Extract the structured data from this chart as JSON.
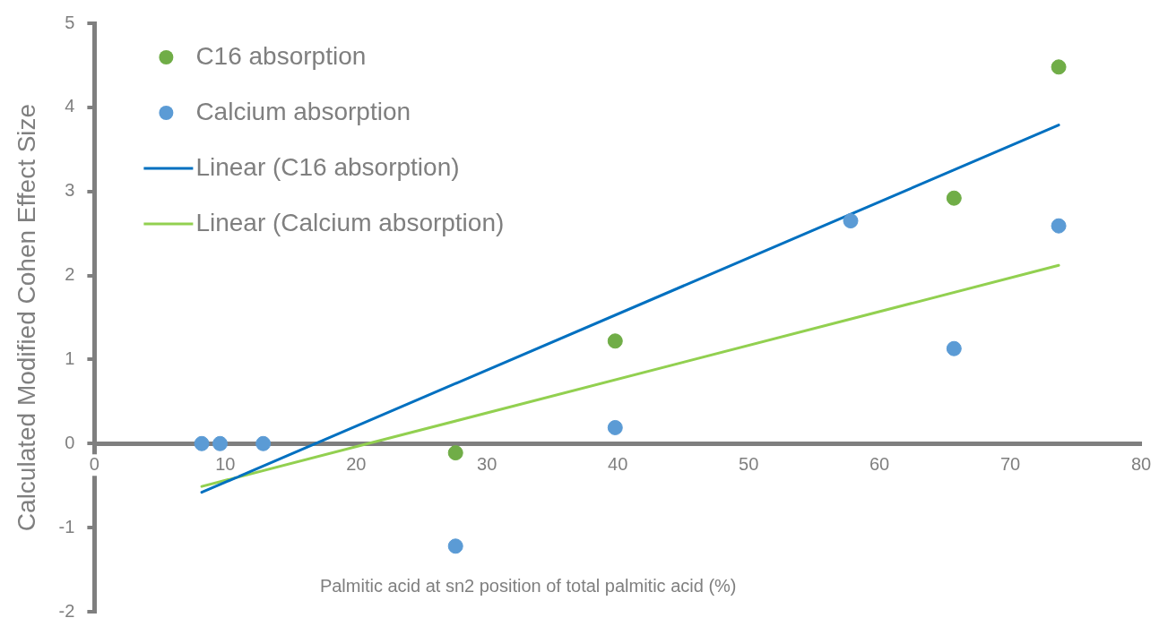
{
  "chart_data": {
    "type": "scatter",
    "xlabel": "Palmitic acid at sn2 position of total palmitic acid (%)",
    "ylabel": "Calculated Modified Cohen Effect Size",
    "xlim": [
      0,
      80
    ],
    "xticks": [
      0,
      10,
      20,
      30,
      40,
      50,
      60,
      70,
      80
    ],
    "ylim": [
      -2,
      5
    ],
    "yticks": [
      -2,
      -1,
      0,
      1,
      2,
      3,
      4,
      5
    ],
    "grid": false,
    "legend": "top left",
    "marker": "circle",
    "series": [
      {
        "name": "C16 absorption",
        "color": "#70ad47",
        "x": [
          27.6,
          39.8,
          65.7,
          73.7
        ],
        "values": [
          -0.11,
          1.22,
          2.92,
          4.48
        ]
      },
      {
        "name": "Calcium absorption",
        "color": "#5b9bd5",
        "x": [
          8.2,
          9.6,
          12.9,
          27.6,
          39.8,
          57.8,
          65.7,
          73.7
        ],
        "values": [
          0,
          0,
          0,
          -1.22,
          0.19,
          2.65,
          1.13,
          2.59
        ]
      },
      {
        "name": "Linear (C16 absorption)",
        "type": "line",
        "marker": "none",
        "line_style": "solid",
        "color": "#0070c0",
        "x": [
          8.2,
          73.7
        ],
        "values": [
          -0.58,
          3.79
        ]
      },
      {
        "name": "Linear (Calcium absorption)",
        "type": "line",
        "marker": "none",
        "line_style": "solid",
        "color": "#92d050",
        "x": [
          8.2,
          73.7
        ],
        "values": [
          -0.51,
          2.12
        ]
      }
    ]
  }
}
